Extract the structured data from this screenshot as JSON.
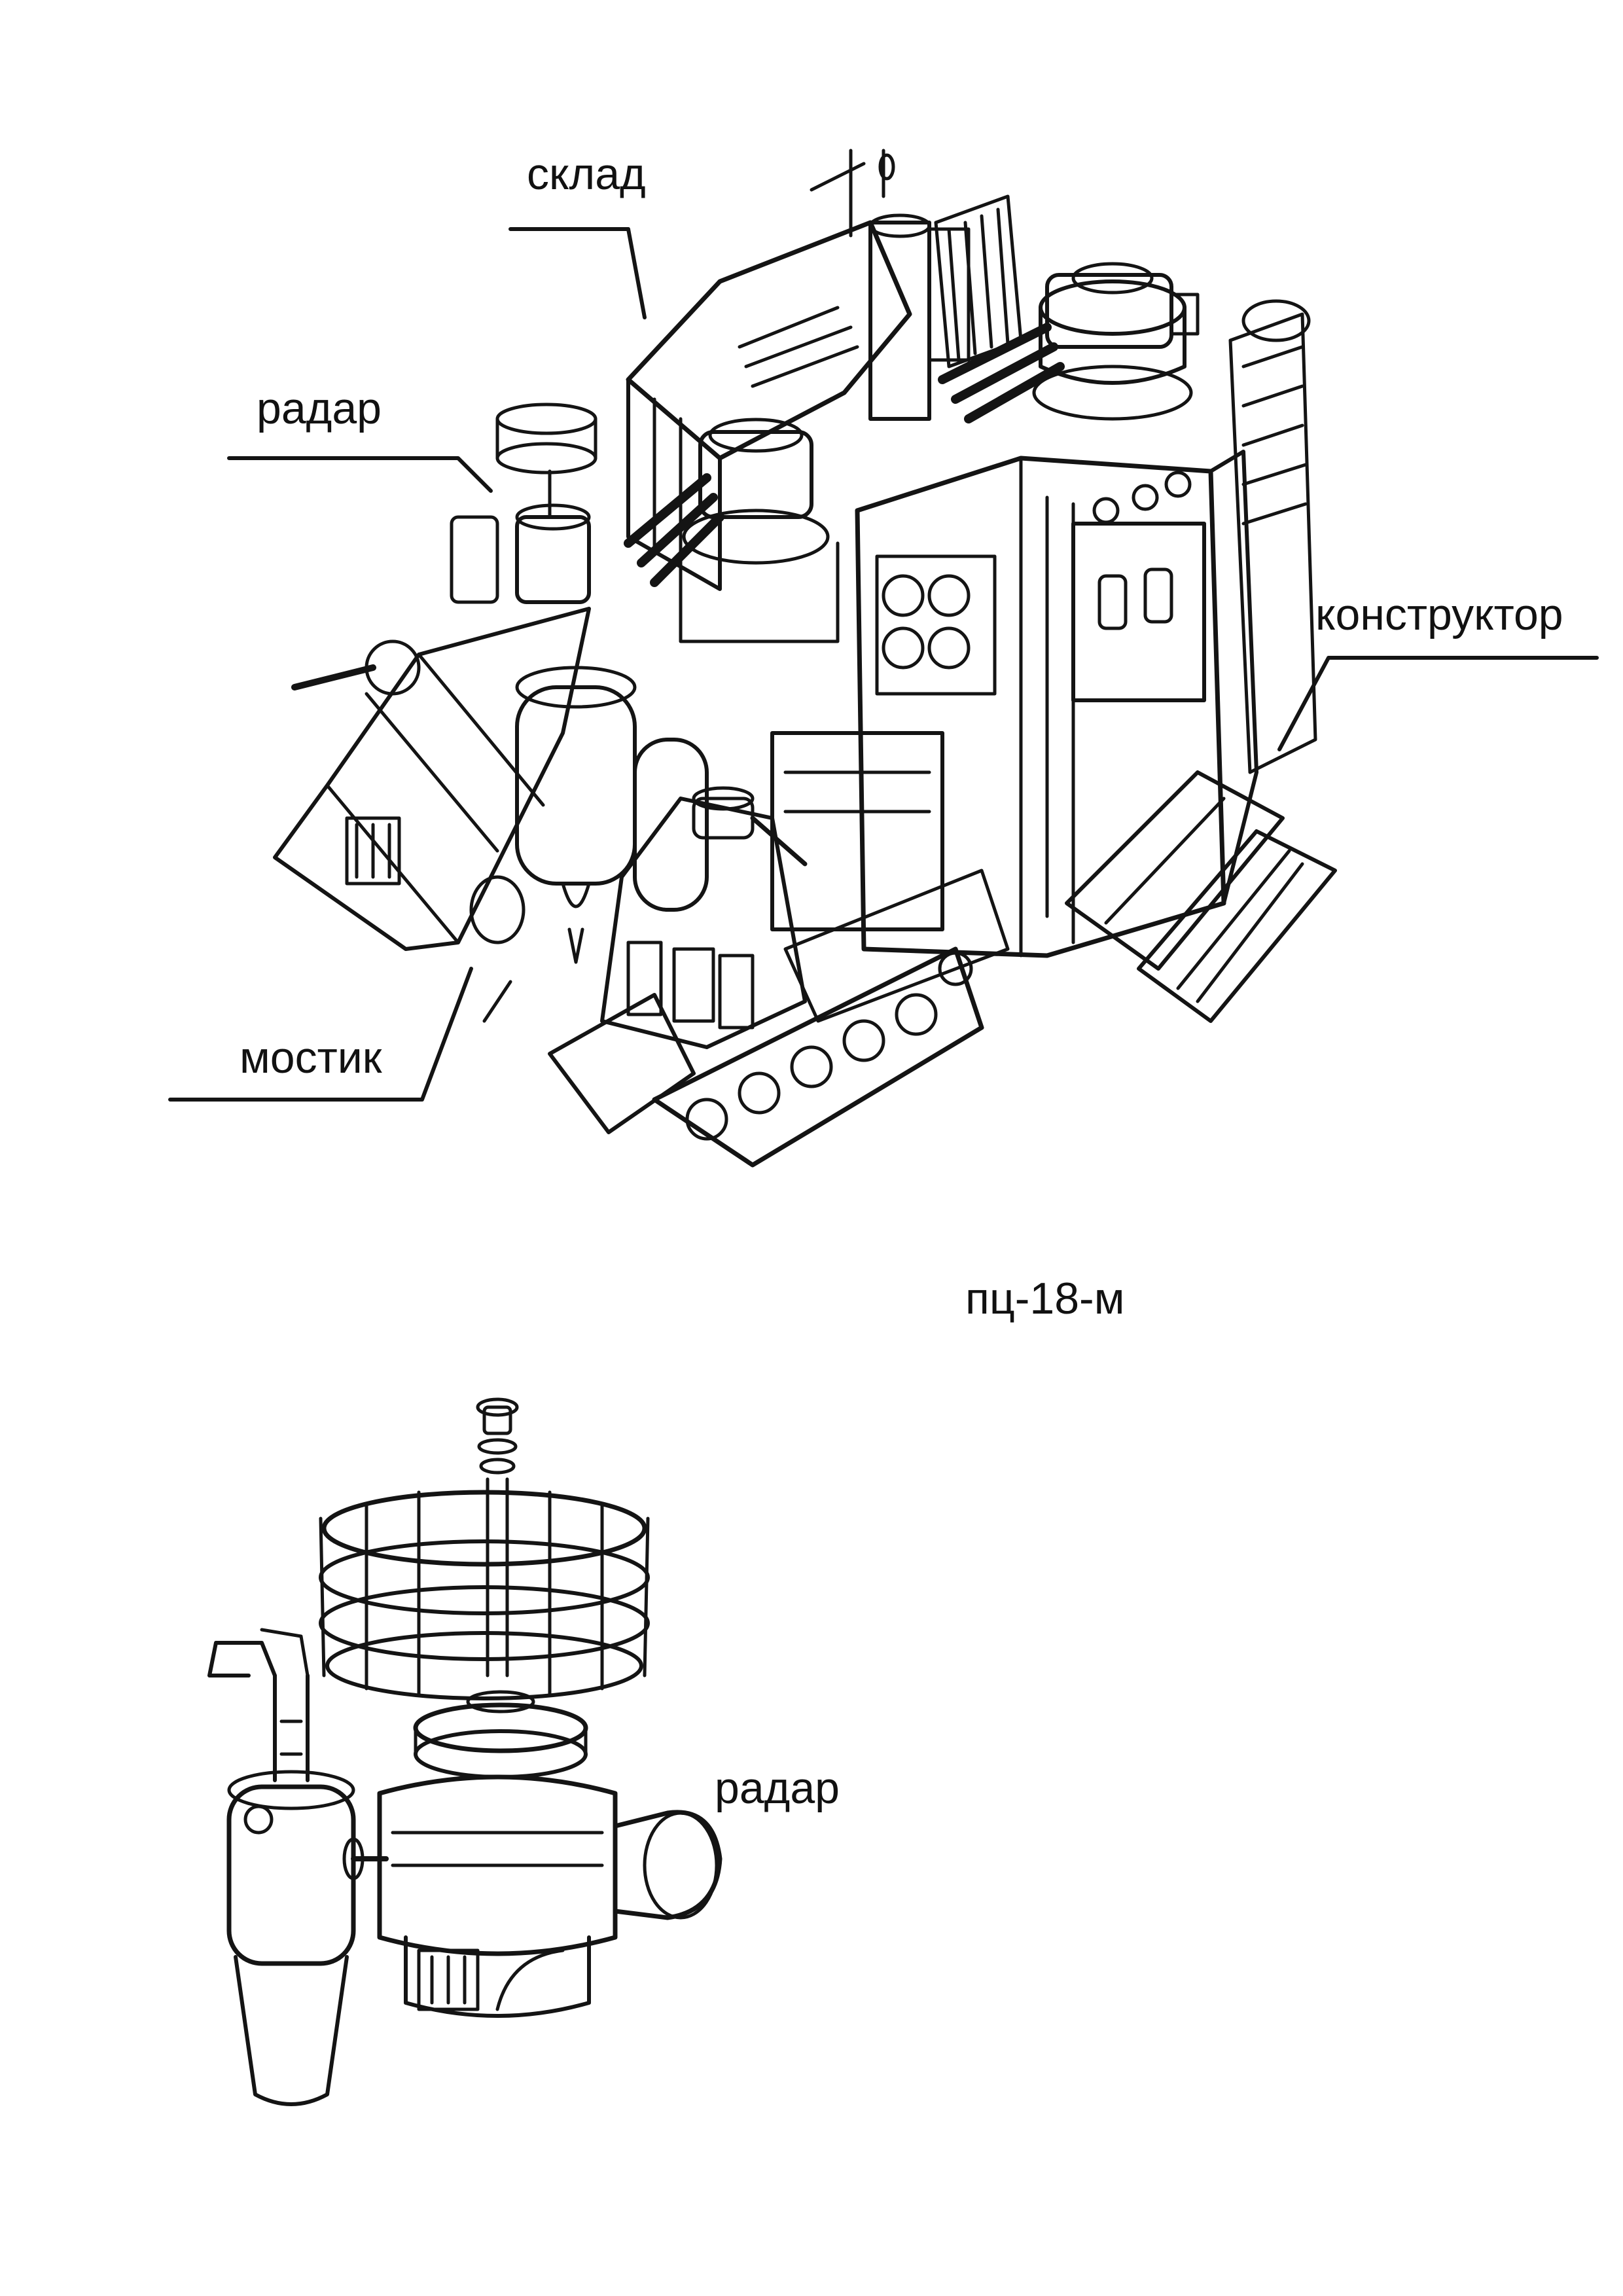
{
  "labels": {
    "sklad": "склад",
    "radar_top": "радар",
    "konstruktor": "конструктор",
    "mostik": "мостик",
    "model": "пц-18-м",
    "radar_bottom": "радар"
  },
  "colors": {
    "ink": "#141414",
    "paper": "#ffffff"
  }
}
